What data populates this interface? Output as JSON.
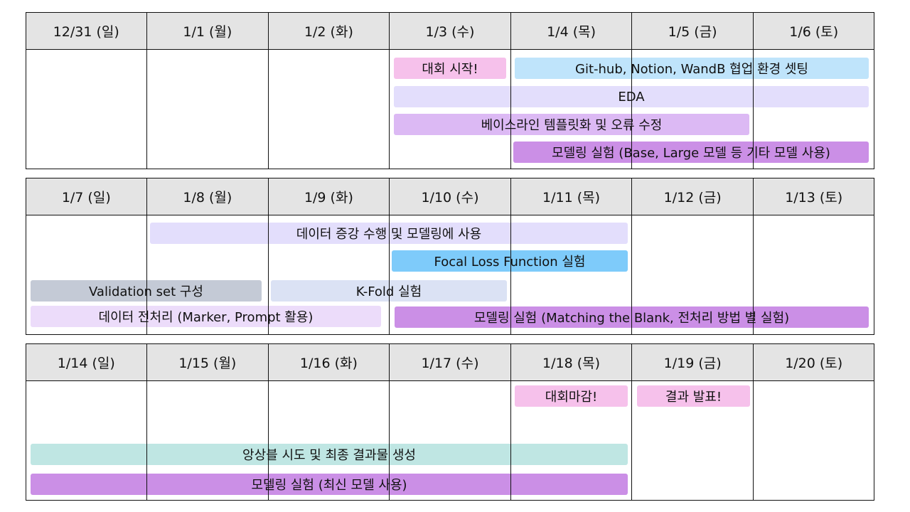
{
  "weeks": [
    {
      "days": [
        "12/31 (일)",
        "1/1 (월)",
        "1/2 (화)",
        "1/3 (수)",
        "1/4 (목)",
        "1/5 (금)",
        "1/6 (토)"
      ],
      "events": [
        {
          "label": "대회 시작!",
          "color": "#f6c1eb"
        },
        {
          "label": "Git-hub, Notion, WandB 협업 환경 셋팅",
          "color": "#bfe4fb"
        },
        {
          "label": "EDA",
          "color": "#e3defc"
        },
        {
          "label": "베이스라인 템플릿화 및 오류 수정",
          "color": "#dcb9f4"
        },
        {
          "label": "모델링 실험 (Base, Large 모델 등 기타 모델 사용)",
          "color": "#cb8fe6"
        }
      ]
    },
    {
      "days": [
        "1/7 (일)",
        "1/8 (월)",
        "1/9 (화)",
        "1/10 (수)",
        "1/11 (목)",
        "1/12 (금)",
        "1/13 (토)"
      ],
      "events": [
        {
          "label": "데이터 증강 수행 및 모델링에 사용",
          "color": "#e3defc"
        },
        {
          "label": "Focal Loss Function 실험",
          "color": "#7ecbfa"
        },
        {
          "label": "Validation set 구성",
          "color": "#c4cad6"
        },
        {
          "label": "K-Fold 실험",
          "color": "#dbe2f4"
        },
        {
          "label": "데이터 전처리 (Marker, Prompt 활용)",
          "color": "#ecdcfa"
        },
        {
          "label": "모델링 실험 (Matching the Blank,  전처리 방법 별 실험)",
          "color": "#cb8fe6"
        }
      ]
    },
    {
      "days": [
        "1/14 (일)",
        "1/15 (월)",
        "1/16 (화)",
        "1/17 (수)",
        "1/18 (목)",
        "1/19 (금)",
        "1/20 (토)"
      ],
      "events": [
        {
          "label": "대회마감!",
          "color": "#f6c1eb"
        },
        {
          "label": "결과 발표!",
          "color": "#f6c1eb"
        },
        {
          "label": "앙상블 시도 및 최종 결과물 생성",
          "color": "#bfe6e3"
        },
        {
          "label": "모델링 실험 (최신 모델 사용)",
          "color": "#cb8fe6"
        }
      ]
    }
  ]
}
